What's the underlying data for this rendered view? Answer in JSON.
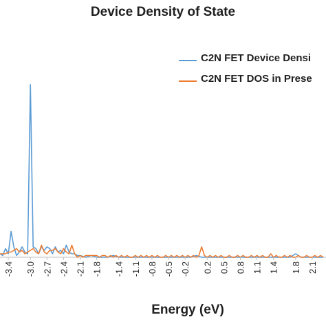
{
  "chart_data": {
    "type": "line",
    "title": "Device Density of State",
    "xlabel": "Energy (eV)",
    "ylabel": "",
    "x_ticks": [
      "-3.4",
      "-3.0",
      "-2.7",
      "-2.4",
      "-2.1",
      "-1.8",
      "-1.4",
      "-1.1",
      "-0.8",
      "-0.5",
      "-0.2",
      "0.2",
      "0.5",
      "0.8",
      "1.1",
      "1.4",
      "1.8",
      "2.1"
    ],
    "xlim": [
      -3.55,
      2.35
    ],
    "ylim": [
      0,
      1
    ],
    "grid": false,
    "legend_position": "top-right",
    "series": [
      {
        "name": "C2N FET Device Densi",
        "color": "#5b9bd5",
        "points": [
          [
            -3.55,
            0.02
          ],
          [
            -3.5,
            0.01
          ],
          [
            -3.45,
            0.05
          ],
          [
            -3.4,
            0.02
          ],
          [
            -3.35,
            0.15
          ],
          [
            -3.3,
            0.06
          ],
          [
            -3.25,
            0.01
          ],
          [
            -3.2,
            0.03
          ],
          [
            -3.15,
            0.06
          ],
          [
            -3.1,
            0.03
          ],
          [
            -3.05,
            0.02
          ],
          [
            -3.0,
            1.0
          ],
          [
            -2.95,
            0.06
          ],
          [
            -2.9,
            0.05
          ],
          [
            -2.85,
            0.02
          ],
          [
            -2.8,
            0.06
          ],
          [
            -2.75,
            0.04
          ],
          [
            -2.7,
            0.06
          ],
          [
            -2.65,
            0.05
          ],
          [
            -2.6,
            0.02
          ],
          [
            -2.55,
            0.06
          ],
          [
            -2.5,
            0.03
          ],
          [
            -2.45,
            0.04
          ],
          [
            -2.4,
            0.02
          ],
          [
            -2.35,
            0.07
          ],
          [
            -2.3,
            0.03
          ],
          [
            -2.25,
            0.02
          ],
          [
            -2.2,
            0.02
          ],
          [
            -2.15,
            0.01
          ],
          [
            -2.1,
            0.01
          ],
          [
            -2.0,
            0.0
          ],
          [
            -1.9,
            0.01
          ],
          [
            -1.8,
            0.0
          ],
          [
            -1.7,
            0.0
          ],
          [
            -1.6,
            0.0
          ],
          [
            -1.5,
            0.01
          ],
          [
            -1.4,
            0.0
          ],
          [
            -1.3,
            0.0
          ],
          [
            -1.2,
            0.0
          ],
          [
            -1.1,
            0.0
          ],
          [
            -1.0,
            0.0
          ],
          [
            -0.9,
            0.0
          ],
          [
            -0.8,
            0.0
          ],
          [
            -0.7,
            0.0
          ],
          [
            -0.6,
            0.0
          ],
          [
            -0.5,
            0.0
          ],
          [
            -0.4,
            0.0
          ],
          [
            -0.3,
            0.0
          ],
          [
            -0.2,
            0.0
          ],
          [
            -0.1,
            0.0
          ],
          [
            0.0,
            0.01
          ],
          [
            0.1,
            0.0
          ],
          [
            0.2,
            0.0
          ],
          [
            0.3,
            0.0
          ],
          [
            0.4,
            0.0
          ],
          [
            0.5,
            0.0
          ],
          [
            0.6,
            0.0
          ],
          [
            0.7,
            0.0
          ],
          [
            0.8,
            0.0
          ],
          [
            0.9,
            0.0
          ],
          [
            1.0,
            0.0
          ],
          [
            1.1,
            0.0
          ],
          [
            1.2,
            0.0
          ],
          [
            1.3,
            0.0
          ],
          [
            1.4,
            0.0
          ],
          [
            1.5,
            0.0
          ],
          [
            1.6,
            0.0
          ],
          [
            1.7,
            0.0
          ],
          [
            1.8,
            0.02
          ],
          [
            1.9,
            0.0
          ],
          [
            2.0,
            0.0
          ],
          [
            2.1,
            0.0
          ],
          [
            2.2,
            0.0
          ],
          [
            2.3,
            0.0
          ]
        ]
      },
      {
        "name": "C2N FET DOS in Prese",
        "color": "#ed7d31",
        "points": [
          [
            -3.55,
            0.02
          ],
          [
            -3.5,
            0.02
          ],
          [
            -3.45,
            0.02
          ],
          [
            -3.4,
            0.03
          ],
          [
            -3.35,
            0.03
          ],
          [
            -3.3,
            0.04
          ],
          [
            -3.25,
            0.05
          ],
          [
            -3.2,
            0.03
          ],
          [
            -3.15,
            0.04
          ],
          [
            -3.1,
            0.02
          ],
          [
            -3.05,
            0.03
          ],
          [
            -3.0,
            0.04
          ],
          [
            -2.95,
            0.05
          ],
          [
            -2.9,
            0.03
          ],
          [
            -2.85,
            0.02
          ],
          [
            -2.8,
            0.07
          ],
          [
            -2.75,
            0.03
          ],
          [
            -2.7,
            0.02
          ],
          [
            -2.65,
            0.04
          ],
          [
            -2.6,
            0.04
          ],
          [
            -2.55,
            0.05
          ],
          [
            -2.5,
            0.03
          ],
          [
            -2.45,
            0.02
          ],
          [
            -2.4,
            0.05
          ],
          [
            -2.35,
            0.03
          ],
          [
            -2.3,
            0.02
          ],
          [
            -2.25,
            0.07
          ],
          [
            -2.2,
            0.02
          ],
          [
            -2.15,
            0.0
          ],
          [
            -2.1,
            0.01
          ],
          [
            -2.05,
            0.0
          ],
          [
            -2.0,
            0.01
          ],
          [
            -1.95,
            0.01
          ],
          [
            -1.9,
            0.01
          ],
          [
            -1.85,
            0.01
          ],
          [
            -1.8,
            0.01
          ],
          [
            -1.75,
            0.0
          ],
          [
            -1.7,
            0.01
          ],
          [
            -1.65,
            0.01
          ],
          [
            -1.6,
            0.0
          ],
          [
            -1.55,
            0.01
          ],
          [
            -1.5,
            0.0
          ],
          [
            -1.45,
            0.01
          ],
          [
            -1.4,
            0.0
          ],
          [
            -1.35,
            0.01
          ],
          [
            -1.3,
            0.0
          ],
          [
            -1.25,
            0.01
          ],
          [
            -1.2,
            0.0
          ],
          [
            -1.15,
            0.0
          ],
          [
            -1.1,
            0.01
          ],
          [
            -1.05,
            0.0
          ],
          [
            -1.0,
            0.01
          ],
          [
            -0.95,
            0.0
          ],
          [
            -0.9,
            0.01
          ],
          [
            -0.85,
            0.0
          ],
          [
            -0.8,
            0.01
          ],
          [
            -0.75,
            0.0
          ],
          [
            -0.7,
            0.01
          ],
          [
            -0.65,
            0.0
          ],
          [
            -0.6,
            0.0
          ],
          [
            -0.55,
            0.01
          ],
          [
            -0.5,
            0.0
          ],
          [
            -0.45,
            0.01
          ],
          [
            -0.4,
            0.0
          ],
          [
            -0.35,
            0.01
          ],
          [
            -0.3,
            0.0
          ],
          [
            -0.25,
            0.01
          ],
          [
            -0.2,
            0.0
          ],
          [
            -0.15,
            0.01
          ],
          [
            -0.1,
            0.0
          ],
          [
            -0.05,
            0.01
          ],
          [
            0.0,
            0.0
          ],
          [
            0.05,
            0.01
          ],
          [
            0.1,
            0.06
          ],
          [
            0.15,
            0.01
          ],
          [
            0.2,
            0.0
          ],
          [
            0.25,
            0.01
          ],
          [
            0.3,
            0.0
          ],
          [
            0.35,
            0.01
          ],
          [
            0.4,
            0.0
          ],
          [
            0.45,
            0.01
          ],
          [
            0.5,
            0.0
          ],
          [
            0.55,
            0.0
          ],
          [
            0.6,
            0.01
          ],
          [
            0.65,
            0.0
          ],
          [
            0.7,
            0.0
          ],
          [
            0.75,
            0.01
          ],
          [
            0.8,
            0.0
          ],
          [
            0.85,
            0.01
          ],
          [
            0.9,
            0.0
          ],
          [
            0.95,
            0.0
          ],
          [
            1.0,
            0.01
          ],
          [
            1.05,
            0.0
          ],
          [
            1.1,
            0.01
          ],
          [
            1.15,
            0.0
          ],
          [
            1.2,
            0.01
          ],
          [
            1.25,
            0.0
          ],
          [
            1.3,
            0.0
          ],
          [
            1.35,
            0.02
          ],
          [
            1.4,
            0.0
          ],
          [
            1.45,
            0.01
          ],
          [
            1.5,
            0.0
          ],
          [
            1.55,
            0.0
          ],
          [
            1.6,
            0.01
          ],
          [
            1.65,
            0.0
          ],
          [
            1.7,
            0.01
          ],
          [
            1.75,
            0.0
          ],
          [
            1.8,
            0.0
          ],
          [
            1.85,
            0.01
          ],
          [
            1.9,
            0.0
          ],
          [
            1.95,
            0.0
          ],
          [
            2.0,
            0.01
          ],
          [
            2.05,
            0.0
          ],
          [
            2.1,
            0.0
          ],
          [
            2.15,
            0.01
          ],
          [
            2.2,
            0.0
          ],
          [
            2.25,
            0.01
          ],
          [
            2.3,
            0.0
          ]
        ]
      }
    ]
  }
}
